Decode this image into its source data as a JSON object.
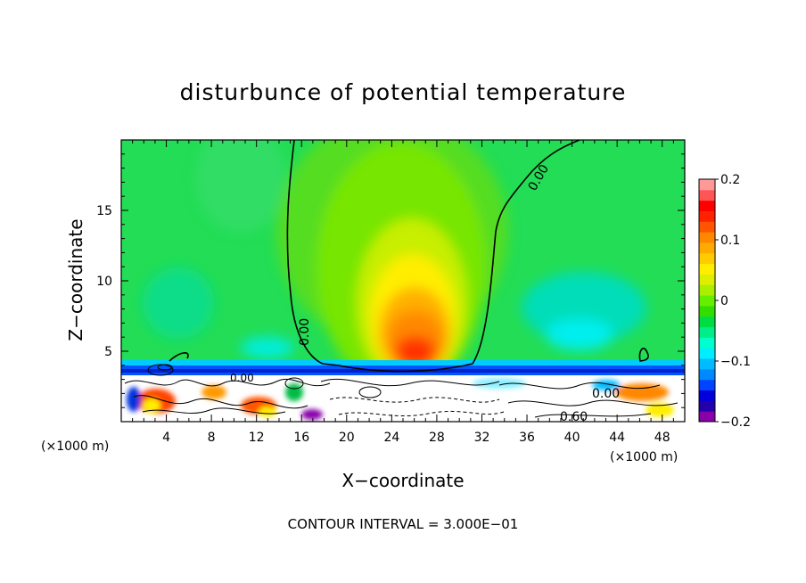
{
  "chart_data": {
    "type": "heatmap",
    "title": "disturbunce of potential temperature",
    "xlabel": "X−coordinate",
    "ylabel": "Z−coordinate",
    "x_unit_left": "(×1000 m)",
    "x_unit_right": "(×1000 m)",
    "footer": "CONTOUR INTERVAL = 3.000E−01",
    "xlim": [
      0,
      50
    ],
    "ylim": [
      0,
      20
    ],
    "x_ticks": [
      4,
      8,
      12,
      16,
      20,
      24,
      28,
      32,
      36,
      40,
      44,
      48
    ],
    "x_tick_labels": [
      "4",
      "8",
      "12",
      "16",
      "20",
      "24",
      "28",
      "32",
      "36",
      "40",
      "44",
      "48"
    ],
    "y_ticks": [
      5,
      10,
      15
    ],
    "y_tick_labels": [
      "5",
      "10",
      "15"
    ],
    "colorbar": {
      "min": -0.2,
      "max": 0.2,
      "tick_values": [
        0.2,
        0.1,
        0,
        -0.1,
        -0.2
      ],
      "tick_labels": [
        "0.2",
        "0.1",
        "0",
        "−0.1",
        "−0.2"
      ],
      "colors": [
        "#8800aa",
        "#2200aa",
        "#0000dd",
        "#0044ff",
        "#0088ff",
        "#00bbff",
        "#00eeff",
        "#00ffcc",
        "#00ee88",
        "#00dd44",
        "#33dd00",
        "#66ee00",
        "#aaee00",
        "#ddee00",
        "#ffee00",
        "#ffcc00",
        "#ffaa00",
        "#ff8800",
        "#ff5500",
        "#ff2200",
        "#ff0000",
        "#ff5555",
        "#ff9999"
      ]
    },
    "contour_labels": [
      "0.00",
      "0.00",
      "0.00",
      "0.00",
      "0.60"
    ],
    "warm_anomaly": {
      "center_x": 26,
      "center_z": 4.5,
      "peak": 0.14
    }
  }
}
